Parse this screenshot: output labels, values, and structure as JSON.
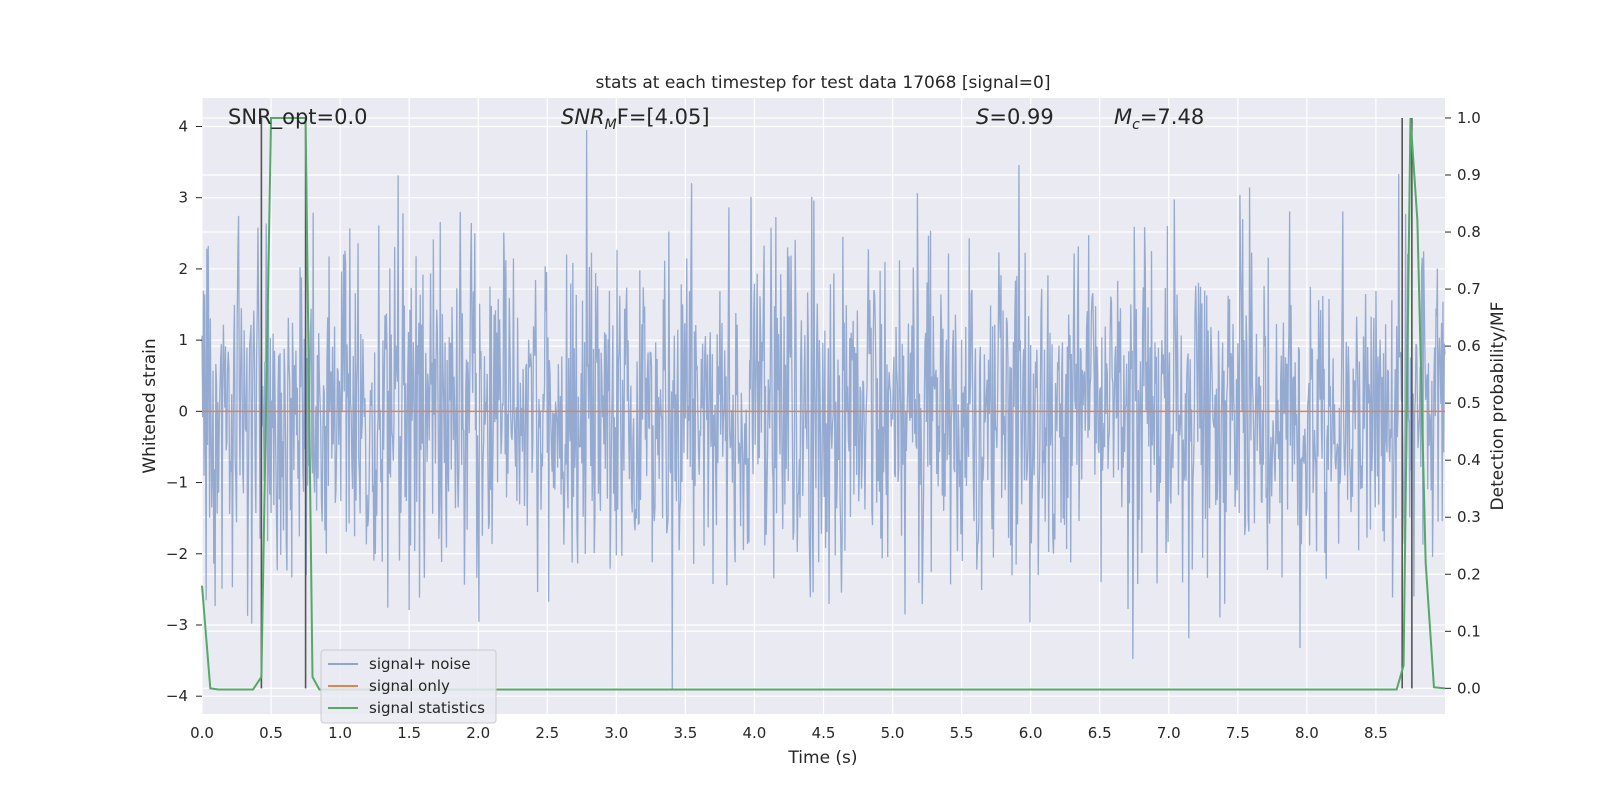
{
  "chart_data": {
    "type": "line",
    "title": "stats at each timestep for test data 17068 [signal=0]",
    "xlabel": "Time (s)",
    "ylabel": "Whitened strain",
    "ylabel_right": "Detection probability/MF",
    "xlim": [
      0.0,
      9.0
    ],
    "ylim": [
      -4.25,
      4.4
    ],
    "ylim_right": [
      -0.045,
      1.035
    ],
    "x_ticks": [
      "0.0",
      "0.5",
      "1.0",
      "1.5",
      "2.0",
      "2.5",
      "3.0",
      "3.5",
      "4.0",
      "4.5",
      "5.0",
      "5.5",
      "6.0",
      "6.5",
      "7.0",
      "7.5",
      "8.0",
      "8.5"
    ],
    "y_ticks": [
      "4",
      "3",
      "2",
      "1",
      "0",
      "−1",
      "−2",
      "−3",
      "−4"
    ],
    "y_ticks_right": [
      "1.0",
      "0.9",
      "0.8",
      "0.7",
      "0.6",
      "0.5",
      "0.4",
      "0.3",
      "0.2",
      "0.1",
      "0.0"
    ],
    "annotations": {
      "snr_opt": "SNR_opt=0.0",
      "snr_mf_main": "SNR",
      "snr_mf_sub": "M",
      "snr_mf_rest": "F=[4.05]",
      "s_main": "S",
      "s_rest": "=0.99",
      "mc_main": "M",
      "mc_sub": "c",
      "mc_rest": "=7.48"
    },
    "series": [
      {
        "name": "signal+ noise",
        "color": "#8fa6cf",
        "description_stat": {
          "sigma": 1.0,
          "sample_rate_hz": 200
        }
      },
      {
        "name": "signal only",
        "color": "#dd8452",
        "x": [
          0.0,
          9.0
        ],
        "y": [
          0.0,
          0.0
        ]
      },
      {
        "name": "signal statistics",
        "color": "#55a868",
        "axis": "right",
        "x": [
          0.0,
          0.06,
          0.12,
          0.37,
          0.43,
          0.5,
          0.62,
          0.75,
          0.8,
          0.85,
          8.65,
          8.7,
          8.75,
          8.8,
          8.86,
          8.92,
          9.0
        ],
        "y": [
          0.18,
          0.0,
          -0.002,
          -0.002,
          0.02,
          1.0,
          1.0,
          1.0,
          0.02,
          -0.002,
          -0.002,
          0.04,
          1.0,
          0.82,
          0.22,
          0.002,
          0.0
        ]
      }
    ],
    "vertical_lines_x": [
      0.43,
      0.75,
      8.69,
      8.76
    ],
    "legend": {
      "placement": "lower-left",
      "entries": [
        "signal+ noise",
        "signal only",
        "signal statistics"
      ]
    },
    "background": "#eaeaf2",
    "grid": true
  }
}
